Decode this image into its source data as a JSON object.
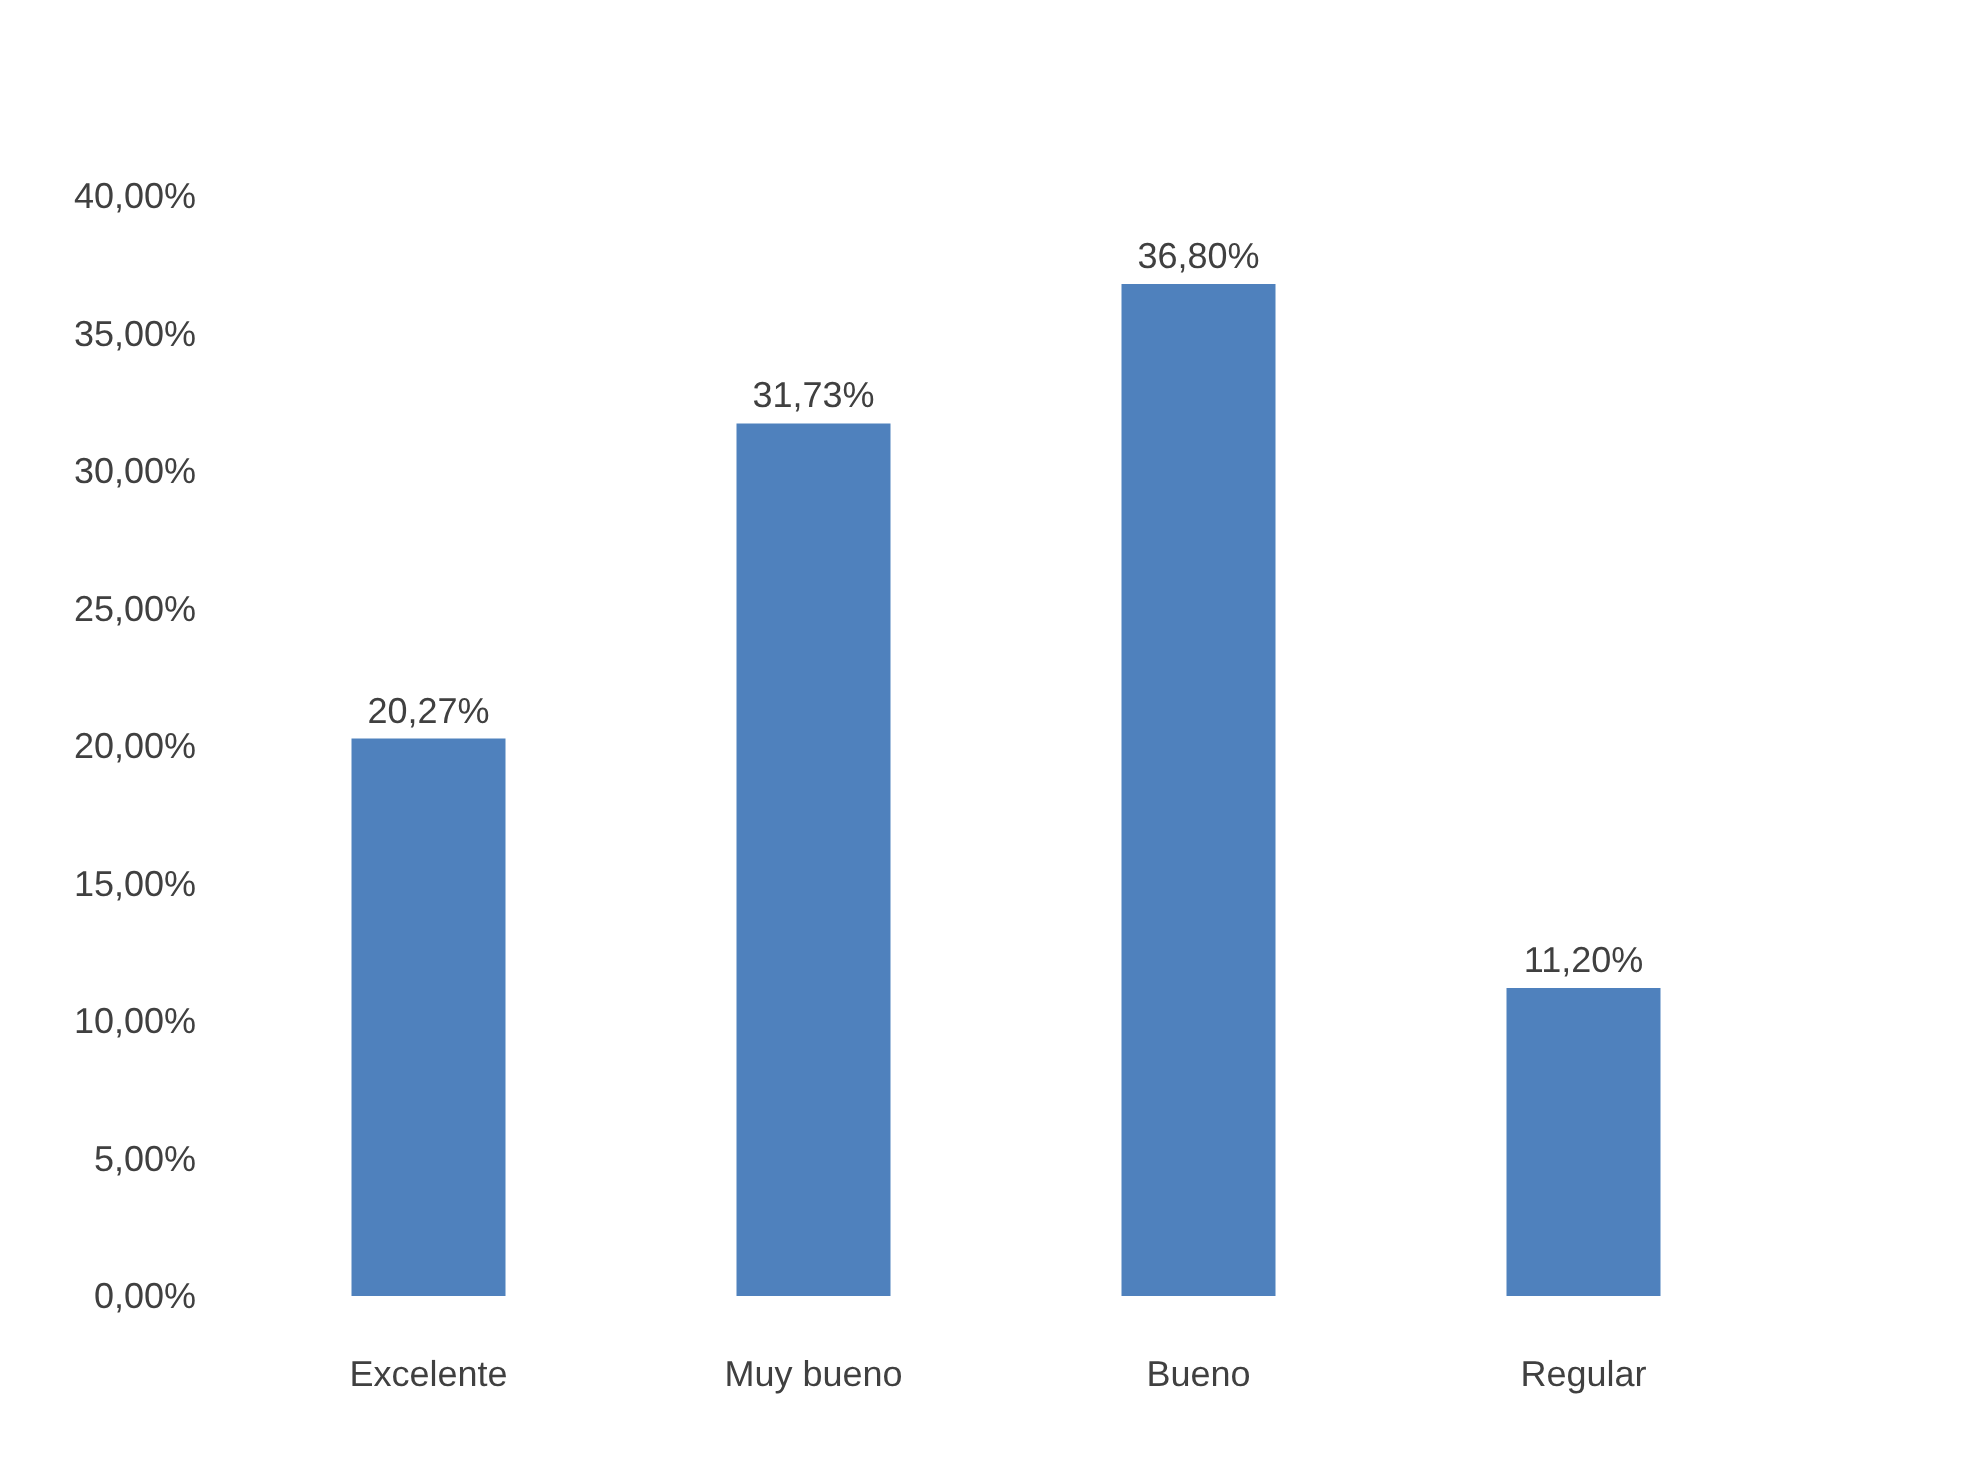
{
  "chart_data": {
    "type": "bar",
    "categories": [
      "Excelente",
      "Muy bueno",
      "Bueno",
      "Regular"
    ],
    "values": [
      20.27,
      31.73,
      36.8,
      11.2
    ],
    "value_labels": [
      "20,27%",
      "31,73%",
      "36,80%",
      "11,20%"
    ],
    "color": "#4f81bd",
    "ylim": [
      0,
      40
    ],
    "yticks": [
      {
        "value": 0,
        "label": "0,00%"
      },
      {
        "value": 5,
        "label": "5,00%"
      },
      {
        "value": 10,
        "label": "10,00%"
      },
      {
        "value": 15,
        "label": "15,00%"
      },
      {
        "value": 20,
        "label": "20,00%"
      },
      {
        "value": 25,
        "label": "25,00%"
      },
      {
        "value": 30,
        "label": "30,00%"
      },
      {
        "value": 35,
        "label": "35,00%"
      },
      {
        "value": 40,
        "label": "40,00%"
      }
    ],
    "grid": false
  }
}
